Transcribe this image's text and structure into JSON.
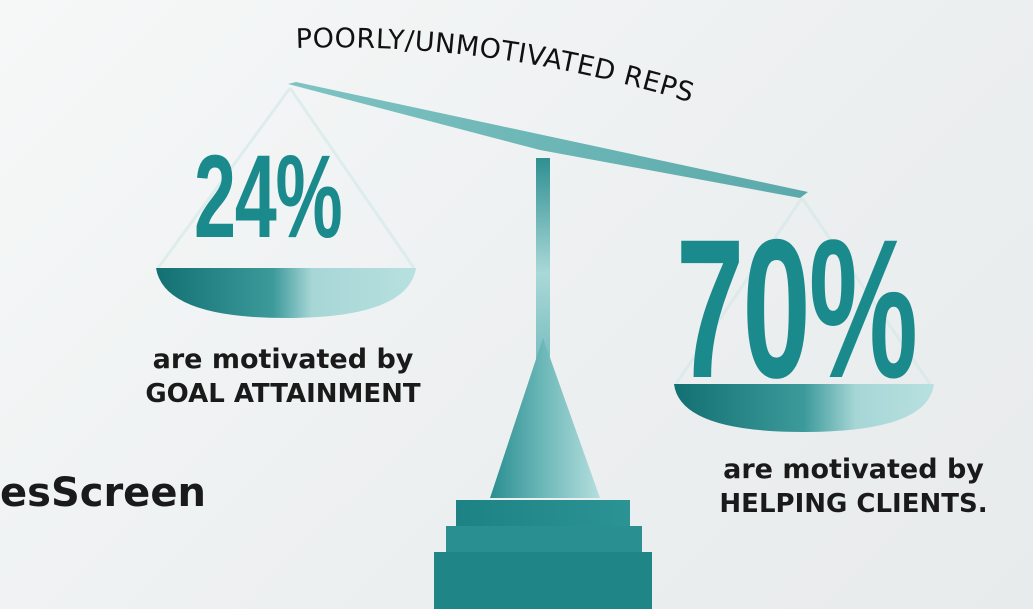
{
  "title": "POORLY/UNMOTIVATED REPS",
  "left_scale": {
    "percent": "24%",
    "line1": "are motivated by",
    "line2": "GOAL ATTAINMENT"
  },
  "right_scale": {
    "percent": "70%",
    "line1": "are motivated by",
    "line2": "HELPING CLIENTS."
  },
  "brand": "esScreen",
  "colors": {
    "accent_teal": "#1b8a8c",
    "light_teal": "#a9d8d8",
    "dark_teal": "#167a7c",
    "text": "#1a1a1a"
  }
}
